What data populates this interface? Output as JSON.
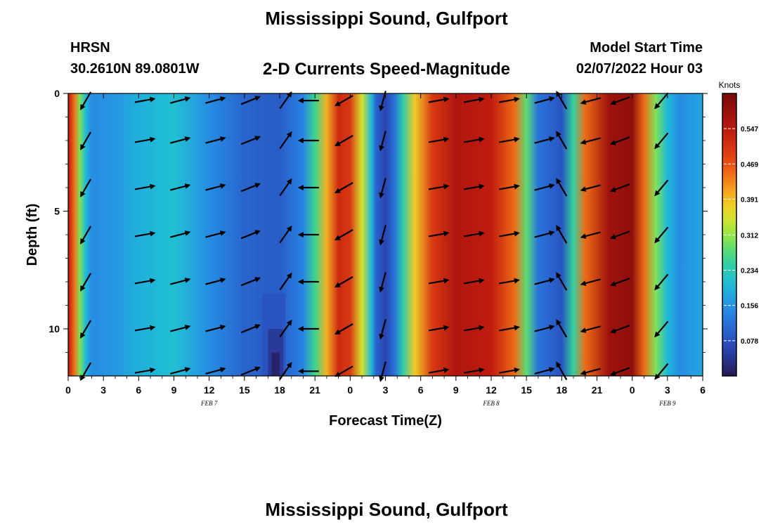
{
  "header": {
    "title": "Mississippi Sound, Gulfport",
    "station": "HRSN",
    "coords": "30.2610N  89.0801W",
    "chart_title": "2-D Currents Speed-Magnitude",
    "model_start_label": "Model Start Time",
    "model_start_value": "02/07/2022 Hour 03"
  },
  "footer": {
    "title": "Mississippi Sound, Gulfport"
  },
  "chart_data": {
    "type": "heatmap",
    "xlabel": "Forecast Time(Z)",
    "ylabel": "Depth (ft)",
    "x_hours_range": [
      0,
      54
    ],
    "y_range": [
      0,
      12
    ],
    "x_ticks": [
      "0",
      "3",
      "6",
      "9",
      "12",
      "15",
      "18",
      "21",
      "0",
      "3",
      "6",
      "9",
      "12",
      "15",
      "18",
      "21",
      "0",
      "3",
      "6"
    ],
    "y_ticks": [
      "0",
      "5",
      "10"
    ],
    "y_tick_values": [
      0,
      5,
      10
    ],
    "date_labels": [
      {
        "label": "FEB 7",
        "hour": 12
      },
      {
        "label": "FEB 8",
        "hour": 36
      },
      {
        "label": "FEB 9",
        "hour": 51
      }
    ],
    "colorbar": {
      "unit": "Knots",
      "ticks": [
        "0.547",
        "0.469",
        "0.391",
        "0.312",
        "0.234",
        "0.156",
        "0.078"
      ],
      "tick_values": [
        0.547,
        0.469,
        0.391,
        0.312,
        0.234,
        0.156,
        0.078
      ],
      "range": [
        0,
        0.625
      ]
    },
    "speed_profile": [
      {
        "hour": 0,
        "speed": 0.55
      },
      {
        "hour": 0.5,
        "speed": 0.45
      },
      {
        "hour": 1.0,
        "speed": 0.3
      },
      {
        "hour": 1.5,
        "speed": 0.2
      },
      {
        "hour": 2.0,
        "speed": 0.15
      },
      {
        "hour": 4,
        "speed": 0.16
      },
      {
        "hour": 6,
        "speed": 0.19
      },
      {
        "hour": 9,
        "speed": 0.21
      },
      {
        "hour": 12,
        "speed": 0.15
      },
      {
        "hour": 15,
        "speed": 0.1
      },
      {
        "hour": 18,
        "speed": 0.09
      },
      {
        "hour": 20,
        "speed": 0.14
      },
      {
        "hour": 21,
        "speed": 0.26
      },
      {
        "hour": 22,
        "speed": 0.4
      },
      {
        "hour": 23,
        "speed": 0.52
      },
      {
        "hour": 24,
        "speed": 0.5
      },
      {
        "hour": 25,
        "speed": 0.35
      },
      {
        "hour": 25.8,
        "speed": 0.2
      },
      {
        "hour": 26.2,
        "speed": 0.1
      },
      {
        "hour": 27,
        "speed": 0.06
      },
      {
        "hour": 27.8,
        "speed": 0.12
      },
      {
        "hour": 28.5,
        "speed": 0.24
      },
      {
        "hour": 29.5,
        "speed": 0.38
      },
      {
        "hour": 31,
        "speed": 0.5
      },
      {
        "hour": 33,
        "speed": 0.56
      },
      {
        "hour": 36,
        "speed": 0.54
      },
      {
        "hour": 38,
        "speed": 0.45
      },
      {
        "hour": 39,
        "speed": 0.28
      },
      {
        "hour": 40,
        "speed": 0.12
      },
      {
        "hour": 42,
        "speed": 0.08
      },
      {
        "hour": 43,
        "speed": 0.25
      },
      {
        "hour": 44,
        "speed": 0.45
      },
      {
        "hour": 46,
        "speed": 0.58
      },
      {
        "hour": 48,
        "speed": 0.6
      },
      {
        "hour": 49,
        "speed": 0.45
      },
      {
        "hour": 50,
        "speed": 0.3
      },
      {
        "hour": 51,
        "speed": 0.2
      },
      {
        "hour": 52,
        "speed": 0.15
      },
      {
        "hour": 54,
        "speed": 0.18
      }
    ],
    "vectors": {
      "depths": [
        0.3,
        2.0,
        4.0,
        6.0,
        8.0,
        10.0,
        11.8
      ],
      "columns": [
        {
          "hour": 1.5,
          "dir": 210
        },
        {
          "hour": 6.5,
          "dir": 80
        },
        {
          "hour": 9.5,
          "dir": 75
        },
        {
          "hour": 12.5,
          "dir": 75
        },
        {
          "hour": 15.5,
          "dir": 68
        },
        {
          "hour": 18.5,
          "dir": 35
        },
        {
          "hour": 20.5,
          "dir": 270
        },
        {
          "hour": 23.5,
          "dir": 240
        },
        {
          "hour": 26.8,
          "dir": 195
        },
        {
          "hour": 31.5,
          "dir": 80
        },
        {
          "hour": 34.5,
          "dir": 80
        },
        {
          "hour": 37.5,
          "dir": 80
        },
        {
          "hour": 40.5,
          "dir": 75
        },
        {
          "hour": 42,
          "dir": 330
        },
        {
          "hour": 44.5,
          "dir": 255
        },
        {
          "hour": 47,
          "dir": 250
        },
        {
          "hour": 50.5,
          "dir": 220
        }
      ]
    }
  }
}
